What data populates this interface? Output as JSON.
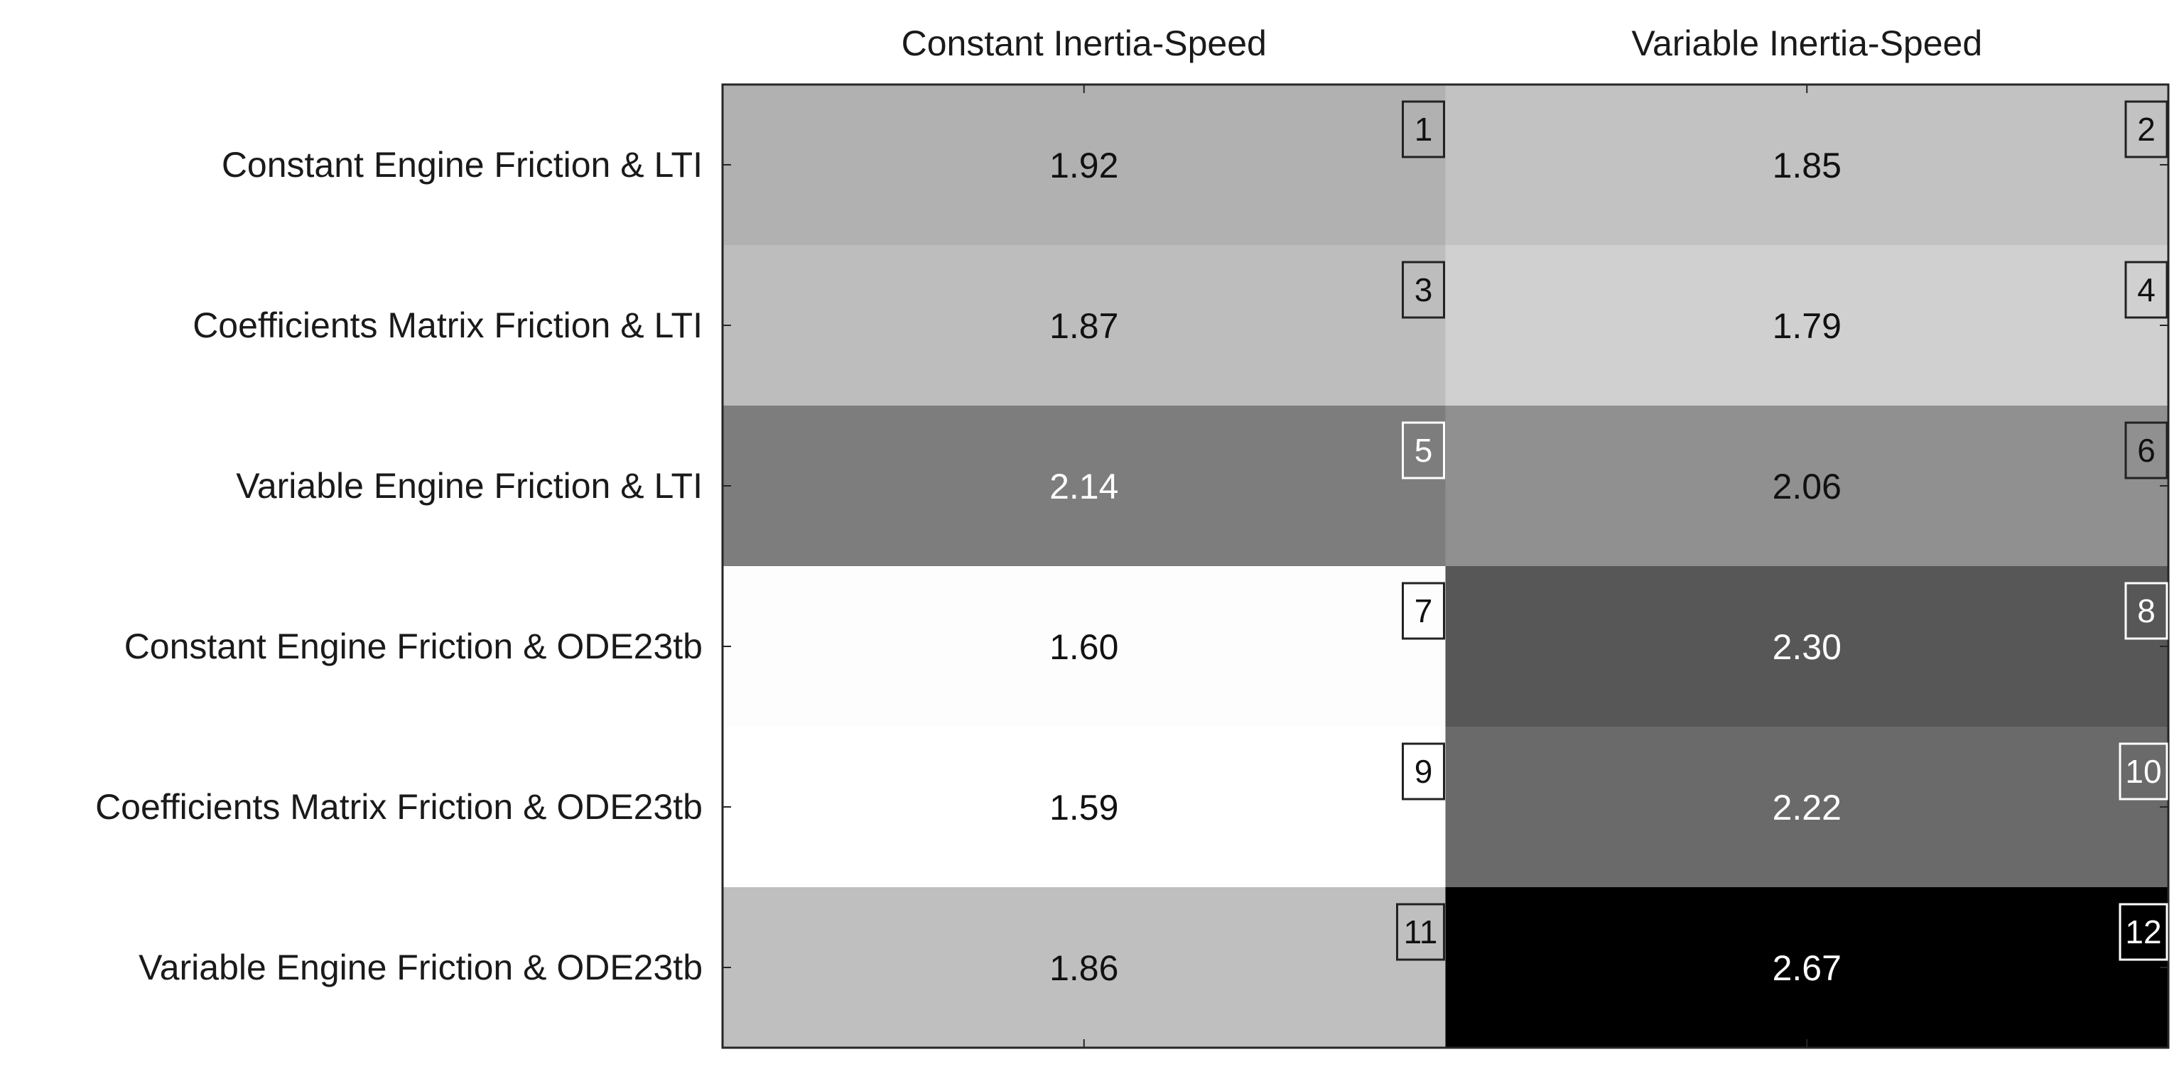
{
  "chart_data": {
    "type": "heatmap",
    "colormap": "gray (higher value = darker)",
    "columns": [
      "Constant Inertia-Speed",
      "Variable Inertia-Speed"
    ],
    "rows": [
      "Constant Engine Friction & LTI",
      "Coefficients Matrix Friction & LTI",
      "Variable Engine Friction & LTI",
      "Constant Engine Friction & ODE23tb",
      "Coefficients Matrix Friction & ODE23tb",
      "Variable Engine Friction & ODE23tb"
    ],
    "values": [
      [
        1.92,
        1.85
      ],
      [
        1.87,
        1.79
      ],
      [
        2.14,
        2.06
      ],
      [
        1.6,
        2.3
      ],
      [
        1.59,
        2.22
      ],
      [
        1.86,
        2.67
      ]
    ],
    "value_labels": [
      [
        "1.92",
        "1.85"
      ],
      [
        "1.87",
        "1.79"
      ],
      [
        "2.14",
        "2.06"
      ],
      [
        "1.60",
        "2.30"
      ],
      [
        "1.59",
        "2.22"
      ],
      [
        "1.86",
        "2.67"
      ]
    ],
    "cell_ids": [
      [
        "1",
        "2"
      ],
      [
        "3",
        "4"
      ],
      [
        "5",
        "6"
      ],
      [
        "7",
        "8"
      ],
      [
        "9",
        "10"
      ],
      [
        "11",
        "12"
      ]
    ],
    "value_range": [
      1.59,
      2.67
    ]
  }
}
